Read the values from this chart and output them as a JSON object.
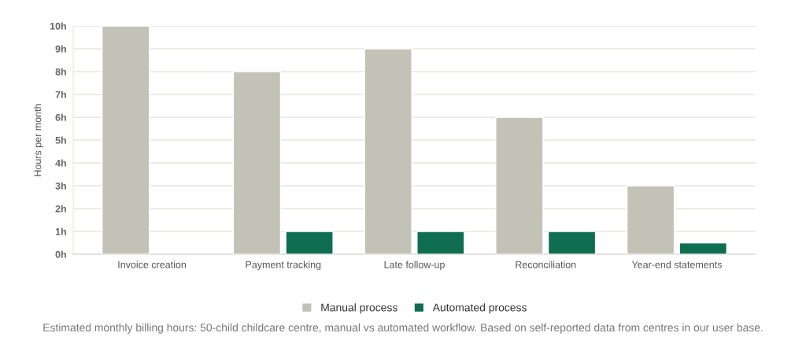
{
  "chart_data": {
    "type": "bar",
    "categories": [
      "Invoice creation",
      "Payment tracking",
      "Late follow-up",
      "Reconciliation",
      "Year-end statements"
    ],
    "series": [
      {
        "name": "Manual process",
        "color": "#c2c2b6",
        "values": [
          10,
          8,
          9,
          6,
          3
        ]
      },
      {
        "name": "Automated process",
        "color": "#0e6e4f",
        "values": [
          null,
          1,
          1,
          1,
          0.5
        ]
      }
    ],
    "ylabel": "Hours per month",
    "ylim": [
      0,
      10
    ],
    "yticks": [
      {
        "value": 0,
        "label": "0h"
      },
      {
        "value": 1,
        "label": "1h"
      },
      {
        "value": 2,
        "label": "2h"
      },
      {
        "value": 3,
        "label": "3h"
      },
      {
        "value": 4,
        "label": "4h"
      },
      {
        "value": 5,
        "label": "5h"
      },
      {
        "value": 6,
        "label": "6h"
      },
      {
        "value": 7,
        "label": "7h"
      },
      {
        "value": 8,
        "label": "8h"
      },
      {
        "value": 9,
        "label": "9h"
      },
      {
        "value": 10,
        "label": "10h"
      }
    ],
    "grid": "y",
    "legend": "bottom",
    "annotations": [
      "Estimated monthly billing hours: 50-child childcare centre, manual vs automated workflow. Based on self-reported data from centres in our user base."
    ]
  }
}
